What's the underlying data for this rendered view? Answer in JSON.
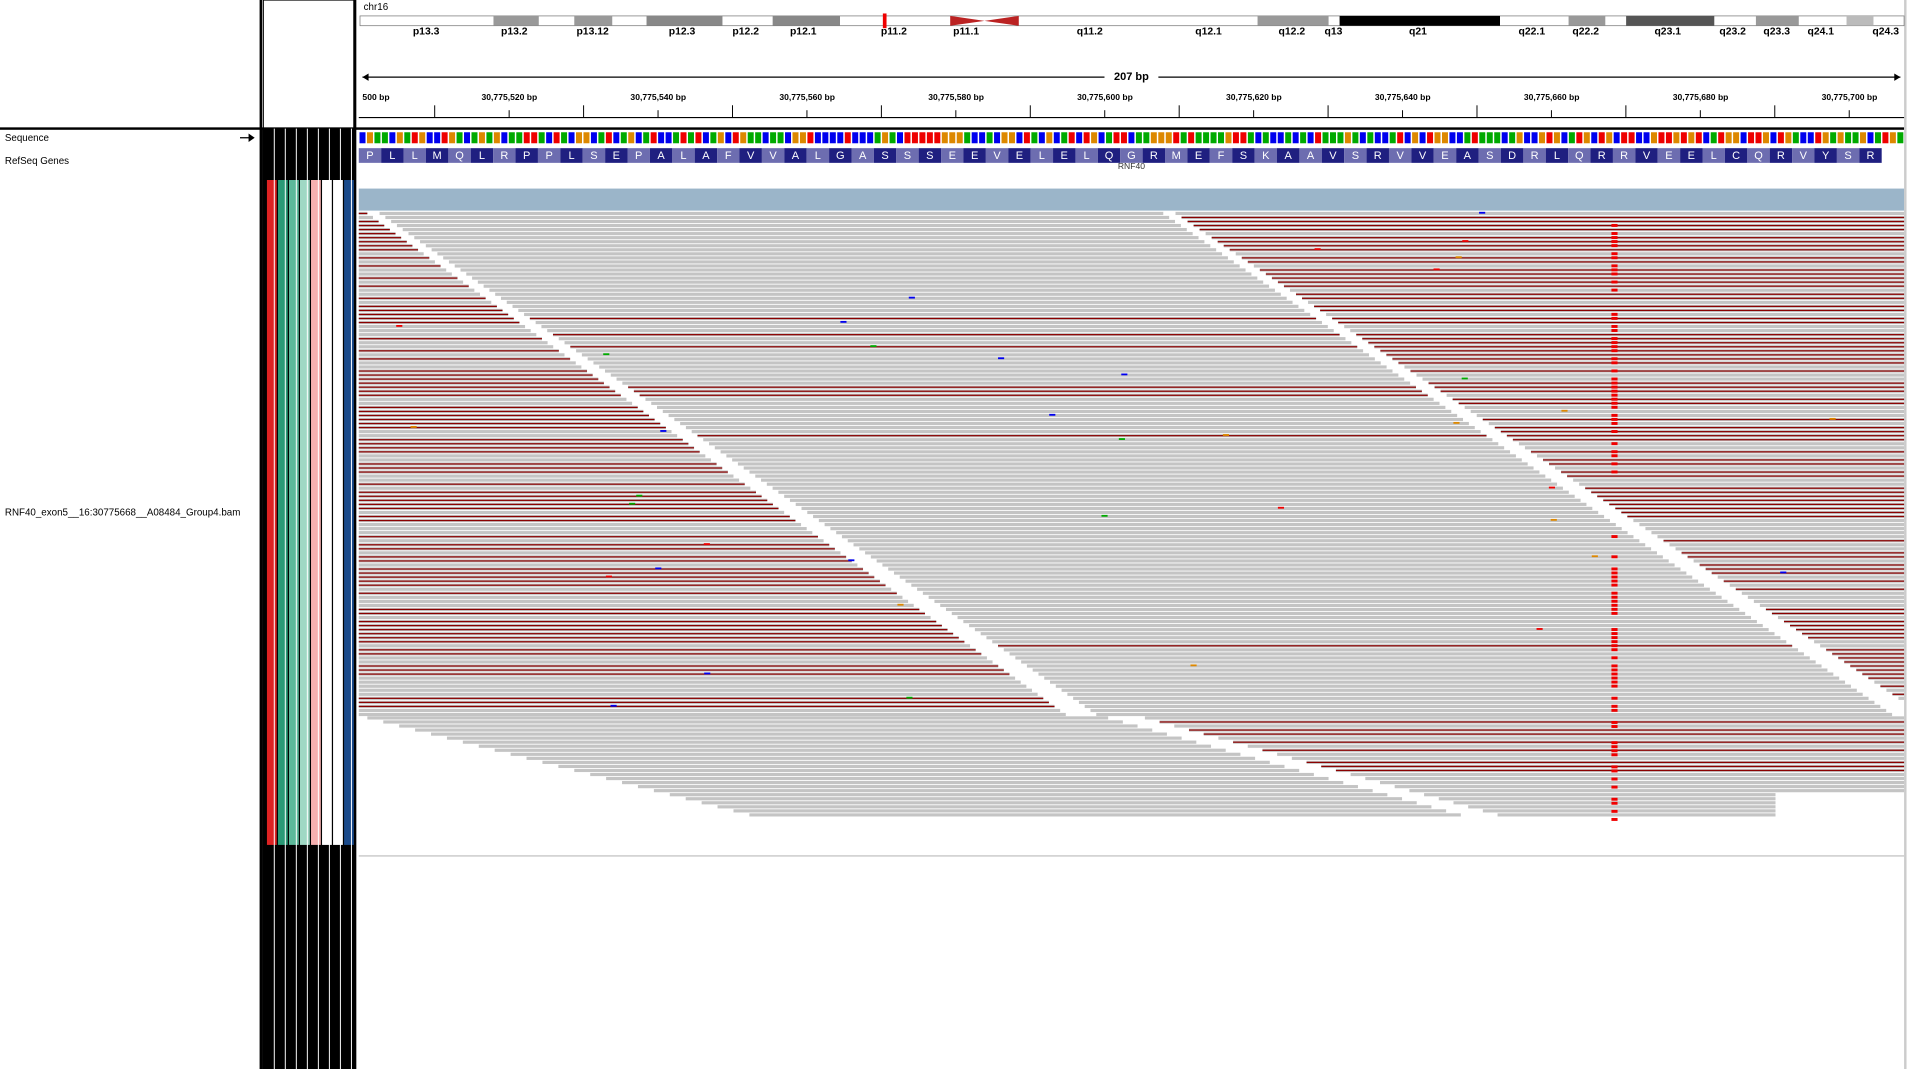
{
  "header": {
    "chromosome": "chr16",
    "cytobands": [
      "p13.3",
      "p13.2",
      "p13.12",
      "p12.3",
      "p12.2",
      "p12.1",
      "p11.2",
      "p11.1",
      "q11.2",
      "q12.1",
      "q12.2",
      "q13",
      "q21",
      "q22.1",
      "q22.2",
      "q23.1",
      "q23.2",
      "q23.3",
      "q24.1",
      "q24.3"
    ],
    "span": "207 bp",
    "ruler_ticks": [
      "500 bp",
      "30,775,520 bp",
      "30,775,540 bp",
      "30,775,560 bp",
      "30,775,580 bp",
      "30,775,600 bp",
      "30,775,620 bp",
      "30,775,640 bp",
      "30,775,660 bp",
      "30,775,680 bp",
      "30,775,700 bp"
    ]
  },
  "tracks": {
    "sequence": "Sequence",
    "refseq": "RefSeq Genes",
    "alignment": "RNF40_exon5__16:30775668__A08484_Group4.bam"
  },
  "gene": {
    "name": "RNF40",
    "amino_acids": [
      "P",
      "L",
      "L",
      "M",
      "Q",
      "L",
      "R",
      "P",
      "P",
      "L",
      "S",
      "E",
      "P",
      "A",
      "L",
      "A",
      "F",
      "V",
      "V",
      "A",
      "L",
      "G",
      "A",
      "S",
      "S",
      "S",
      "E",
      "E",
      "V",
      "E",
      "L",
      "E",
      "L",
      "Q",
      "G",
      "R",
      "M",
      "E",
      "F",
      "S",
      "K",
      "A",
      "A",
      "V",
      "S",
      "R",
      "V",
      "V",
      "E",
      "A",
      "S",
      "D",
      "R",
      "L",
      "Q",
      "R",
      "R",
      "V",
      "E",
      "E",
      "L",
      "C",
      "Q",
      "R",
      "V",
      "Y",
      "S",
      "R"
    ]
  }
}
